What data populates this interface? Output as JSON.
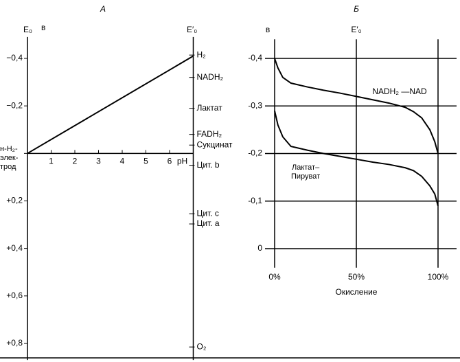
{
  "chart_data": [
    {
      "type": "line",
      "title": "А",
      "ylabel": "E₀",
      "yunit": "в",
      "y2label": "E′₀",
      "xlabel": "pH",
      "x": [
        0,
        7
      ],
      "series": [
        {
          "color": "#000000",
          "values": [
            0,
            -0.41
          ]
        }
      ],
      "xlim": [
        0,
        7
      ],
      "xticks": [
        1,
        2,
        3,
        4,
        5,
        6
      ],
      "ylim": [
        -0.49,
        0.87
      ],
      "y_inverted": true,
      "grid": false,
      "yticks": [
        {
          "value": -0.4,
          "label": "−0,4"
        },
        {
          "value": -0.2,
          "label": "−0,2"
        },
        {
          "value": 0,
          "label": "н-H₂-\nэлек-\nтрод"
        },
        {
          "value": 0.2,
          "label": "+0,2"
        },
        {
          "value": 0.4,
          "label": "+0,4"
        },
        {
          "value": 0.6,
          "label": "+0,6"
        },
        {
          "value": 0.8,
          "label": "+0,8"
        }
      ],
      "annotations": [
        {
          "text": "H₂",
          "value": -0.414
        },
        {
          "text": "NADH₂",
          "value": -0.32
        },
        {
          "text": "Лактат",
          "value": -0.19
        },
        {
          "text": "FADH₂",
          "value": -0.08
        },
        {
          "text": "Сукцинат",
          "value": -0.035
        },
        {
          "text": "Цит. b",
          "value": 0.05
        },
        {
          "text": "Цит. c",
          "value": 0.254
        },
        {
          "text": "Цит. a",
          "value": 0.297
        },
        {
          "text": "O₂",
          "value": 0.815
        }
      ]
    },
    {
      "type": "line",
      "title": "Б",
      "ylabel": "в",
      "reference_label": "E′₀",
      "xlabel": "Окисление",
      "x": [
        0,
        1,
        2,
        5,
        10,
        20,
        30,
        40,
        50,
        60,
        70,
        80,
        85,
        90,
        95,
        98,
        100
      ],
      "series": [
        {
          "name": "NADH₂ —NAD",
          "color": "#000000",
          "values": [
            -0.4,
            -0.39,
            -0.38,
            -0.36,
            -0.348,
            -0.34,
            -0.333,
            -0.327,
            -0.32,
            -0.313,
            -0.306,
            -0.297,
            -0.288,
            -0.275,
            -0.25,
            -0.225,
            -0.2
          ]
        },
        {
          "name": "Лактат–\nПируват",
          "color": "#000000",
          "values": [
            -0.29,
            -0.275,
            -0.26,
            -0.235,
            -0.215,
            -0.207,
            -0.2,
            -0.194,
            -0.188,
            -0.182,
            -0.177,
            -0.17,
            -0.164,
            -0.152,
            -0.132,
            -0.115,
            -0.09
          ]
        }
      ],
      "xlim": [
        0,
        100
      ],
      "xticks": [
        {
          "value": 0,
          "label": "0%"
        },
        {
          "value": 50,
          "label": "50%"
        },
        {
          "value": 100,
          "label": "100%"
        }
      ],
      "ylim": [
        -0.44,
        0.04
      ],
      "y_inverted": true,
      "grid": true,
      "yticks": [
        {
          "value": -0.4,
          "label": "-0,4"
        },
        {
          "value": -0.3,
          "label": "-0,3"
        },
        {
          "value": -0.2,
          "label": "-0,2"
        },
        {
          "value": -0.1,
          "label": "-0,1"
        },
        0
      ]
    }
  ]
}
